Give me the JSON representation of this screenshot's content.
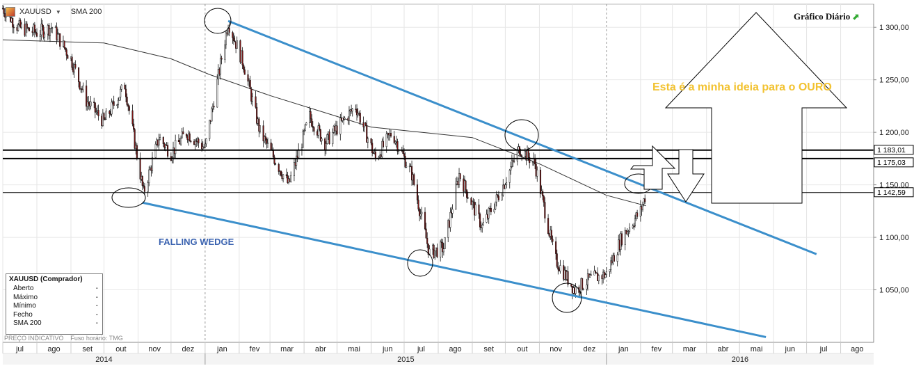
{
  "toolbar": {
    "symbol": "XAUUSD",
    "indicator": "SMA 200"
  },
  "chart_title": "Gráfico Diário",
  "info_box": {
    "title": "XAUUSD (Comprador)",
    "rows": [
      {
        "label": "Aberto",
        "value": "-"
      },
      {
        "label": "Máximo",
        "value": "-"
      },
      {
        "label": "Mínimo",
        "value": "-"
      },
      {
        "label": "Fecho",
        "value": "-"
      },
      {
        "label": "SMA 200",
        "value": "-"
      }
    ]
  },
  "footer": {
    "left": "PREÇO INDICATIVO",
    "right": "Fuso horário: TMG"
  },
  "annotations": {
    "idea": "Esta é a minha ideia para o OURO",
    "pattern": "FALLING WEDGE"
  },
  "chart_data": {
    "type": "candlestick",
    "title": "Gráfico Diário",
    "symbol": "XAUUSD",
    "ylim": [
      1000,
      1322
    ],
    "y_ticks": [
      1050,
      1100,
      1150,
      1200,
      1250,
      1300
    ],
    "y_tick_labels": [
      "1 050,00",
      "1 100,00",
      "1 150,00",
      "1 200,00",
      "1 250,00",
      "1 300,00"
    ],
    "x_range": [
      "2014-07-01",
      "2016-08-31"
    ],
    "month_labels": [
      "jul",
      "ago",
      "set",
      "out",
      "nov",
      "dez",
      "jan",
      "fev",
      "mar",
      "abr",
      "mai",
      "jun",
      "jul",
      "ago",
      "set",
      "out",
      "nov",
      "dez",
      "jan",
      "fev",
      "mar",
      "abr",
      "mai",
      "jun",
      "jul",
      "ago"
    ],
    "year_labels": [
      "2014",
      "2015",
      "2016"
    ],
    "price_series": [
      {
        "date": "2014-07-01",
        "value": 1318
      },
      {
        "date": "2014-07-15",
        "value": 1300
      },
      {
        "date": "2014-08-01",
        "value": 1295
      },
      {
        "date": "2014-08-15",
        "value": 1300
      },
      {
        "date": "2014-09-01",
        "value": 1270
      },
      {
        "date": "2014-09-15",
        "value": 1230
      },
      {
        "date": "2014-10-01",
        "value": 1210
      },
      {
        "date": "2014-10-20",
        "value": 1245
      },
      {
        "date": "2014-11-06",
        "value": 1142
      },
      {
        "date": "2014-11-20",
        "value": 1195
      },
      {
        "date": "2014-12-01",
        "value": 1180
      },
      {
        "date": "2014-12-15",
        "value": 1200
      },
      {
        "date": "2015-01-01",
        "value": 1185
      },
      {
        "date": "2015-01-22",
        "value": 1305
      },
      {
        "date": "2015-02-05",
        "value": 1265
      },
      {
        "date": "2015-02-20",
        "value": 1200
      },
      {
        "date": "2015-03-18",
        "value": 1150
      },
      {
        "date": "2015-04-06",
        "value": 1215
      },
      {
        "date": "2015-04-20",
        "value": 1190
      },
      {
        "date": "2015-05-18",
        "value": 1225
      },
      {
        "date": "2015-06-05",
        "value": 1175
      },
      {
        "date": "2015-06-20",
        "value": 1200
      },
      {
        "date": "2015-07-08",
        "value": 1160
      },
      {
        "date": "2015-07-24",
        "value": 1085
      },
      {
        "date": "2015-08-06",
        "value": 1090
      },
      {
        "date": "2015-08-20",
        "value": 1160
      },
      {
        "date": "2015-09-10",
        "value": 1110
      },
      {
        "date": "2015-09-25",
        "value": 1140
      },
      {
        "date": "2015-10-14",
        "value": 1185
      },
      {
        "date": "2015-10-28",
        "value": 1170
      },
      {
        "date": "2015-11-15",
        "value": 1080
      },
      {
        "date": "2015-12-03",
        "value": 1050
      },
      {
        "date": "2015-12-17",
        "value": 1060
      },
      {
        "date": "2016-01-01",
        "value": 1065
      },
      {
        "date": "2016-01-15",
        "value": 1100
      },
      {
        "date": "2016-02-01",
        "value": 1125
      },
      {
        "date": "2016-02-06",
        "value": 1142
      }
    ],
    "sma200_series": [
      {
        "date": "2014-07-01",
        "value": 1288
      },
      {
        "date": "2014-10-01",
        "value": 1285
      },
      {
        "date": "2014-12-01",
        "value": 1270
      },
      {
        "date": "2015-01-05",
        "value": 1255
      },
      {
        "date": "2015-03-01",
        "value": 1235
      },
      {
        "date": "2015-06-01",
        "value": 1205
      },
      {
        "date": "2015-09-01",
        "value": 1195
      },
      {
        "date": "2015-11-01",
        "value": 1170
      },
      {
        "date": "2016-01-01",
        "value": 1140
      },
      {
        "date": "2016-02-06",
        "value": 1130
      }
    ],
    "horizontal_levels": [
      {
        "value": 1183.01,
        "label": "1 183,01"
      },
      {
        "value": 1175.03,
        "label": "1 175,03"
      },
      {
        "value": 1142.59,
        "label": "1 142,59"
      }
    ],
    "trendlines": [
      {
        "from": {
          "date": "2015-01-22",
          "value": 1306
        },
        "to": {
          "date": "2016-07-10",
          "value": 1084
        }
      },
      {
        "from": {
          "date": "2014-11-05",
          "value": 1133
        },
        "to": {
          "date": "2016-05-25",
          "value": 1005
        }
      }
    ]
  }
}
